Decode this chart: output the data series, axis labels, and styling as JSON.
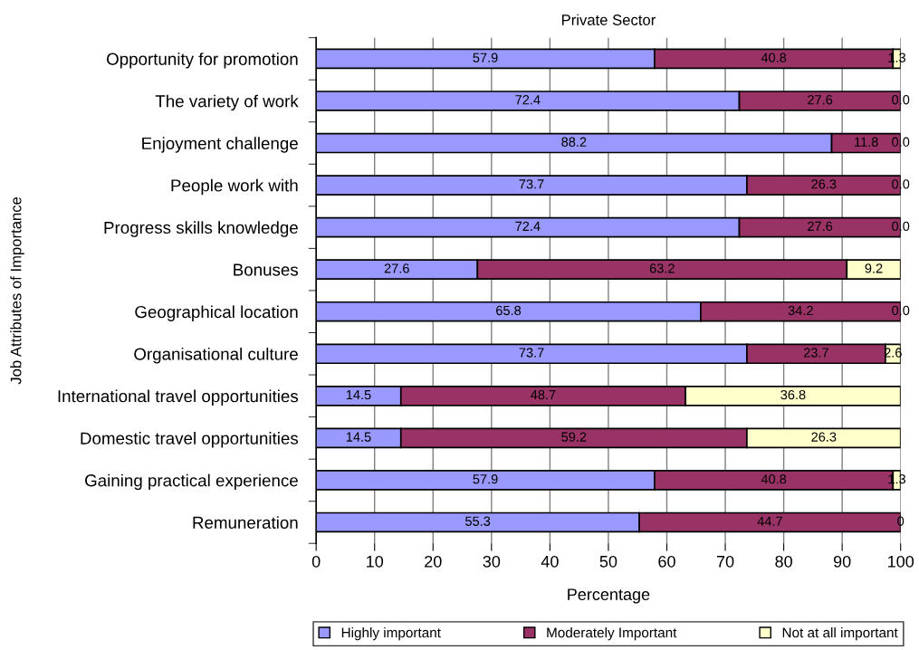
{
  "chart_data": {
    "type": "bar",
    "orientation": "horizontal",
    "stacked": true,
    "title": "Private Sector",
    "xlabel": "Percentage",
    "ylabel": "Job Attributes of Importance",
    "categories": [
      "Opportunity for promotion",
      "The variety of work",
      "Enjoyment challenge",
      "People work with",
      "Progress skills knowledge",
      "Bonuses",
      "Geographical location",
      "Organisational culture",
      "International travel opportunities",
      "Domestic travel opportunities",
      "Gaining practical experience",
      "Remuneration"
    ],
    "series": [
      {
        "name": "Highly important",
        "color": "#9999ff",
        "values": [
          57.9,
          72.4,
          88.2,
          73.7,
          72.4,
          27.6,
          65.8,
          73.7,
          14.5,
          14.5,
          57.9,
          55.3
        ],
        "value_labels": [
          "57.9",
          "72.4",
          "88.2",
          "73.7",
          "72.4",
          "27.6",
          "65.8",
          "73.7",
          "14.5",
          "14.5",
          "57.9",
          "55.3"
        ]
      },
      {
        "name": "Moderately Important",
        "color": "#993366",
        "values": [
          40.8,
          27.6,
          11.8,
          26.3,
          27.6,
          63.2,
          34.2,
          23.7,
          48.7,
          59.2,
          40.8,
          44.7
        ],
        "value_labels": [
          "40.8",
          "27.6",
          "11.8",
          "26.3",
          "27.6",
          "63.2",
          "34.2",
          "23.7",
          "48.7",
          "59.2",
          "40.8",
          "44.7"
        ]
      },
      {
        "name": "Not at all important",
        "color": "#ffffcc",
        "values": [
          1.3,
          0,
          0,
          0,
          0,
          9.2,
          0,
          2.6,
          36.8,
          26.3,
          1.3,
          0
        ],
        "value_labels": [
          "1.3",
          "0.0",
          "0.0",
          "0.0",
          "0.0",
          "9.2",
          "0.0",
          "2.6",
          "36.8",
          "26.3",
          "1.3",
          "0"
        ]
      }
    ],
    "xlim": [
      0,
      100
    ],
    "xticks": [
      0,
      10,
      20,
      30,
      40,
      50,
      60,
      70,
      80,
      90,
      100
    ],
    "grid": "x",
    "legend": "bottom"
  }
}
